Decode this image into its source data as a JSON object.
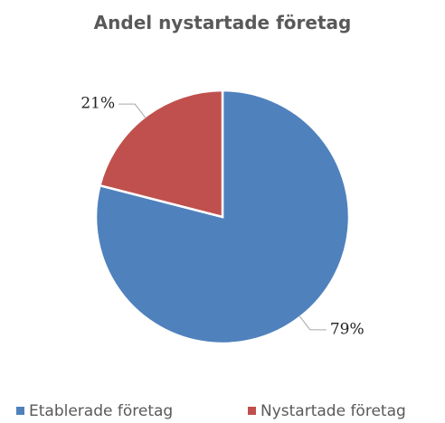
{
  "chart_data": {
    "type": "pie",
    "title": "Andel nystartade företag",
    "categories": [
      "Etablerade företag",
      "Nystartade företag"
    ],
    "values": [
      79,
      21
    ],
    "value_labels": [
      "79%",
      "21%"
    ],
    "colors": [
      "#4f81bd",
      "#c0504d"
    ],
    "legend": "bottom"
  }
}
